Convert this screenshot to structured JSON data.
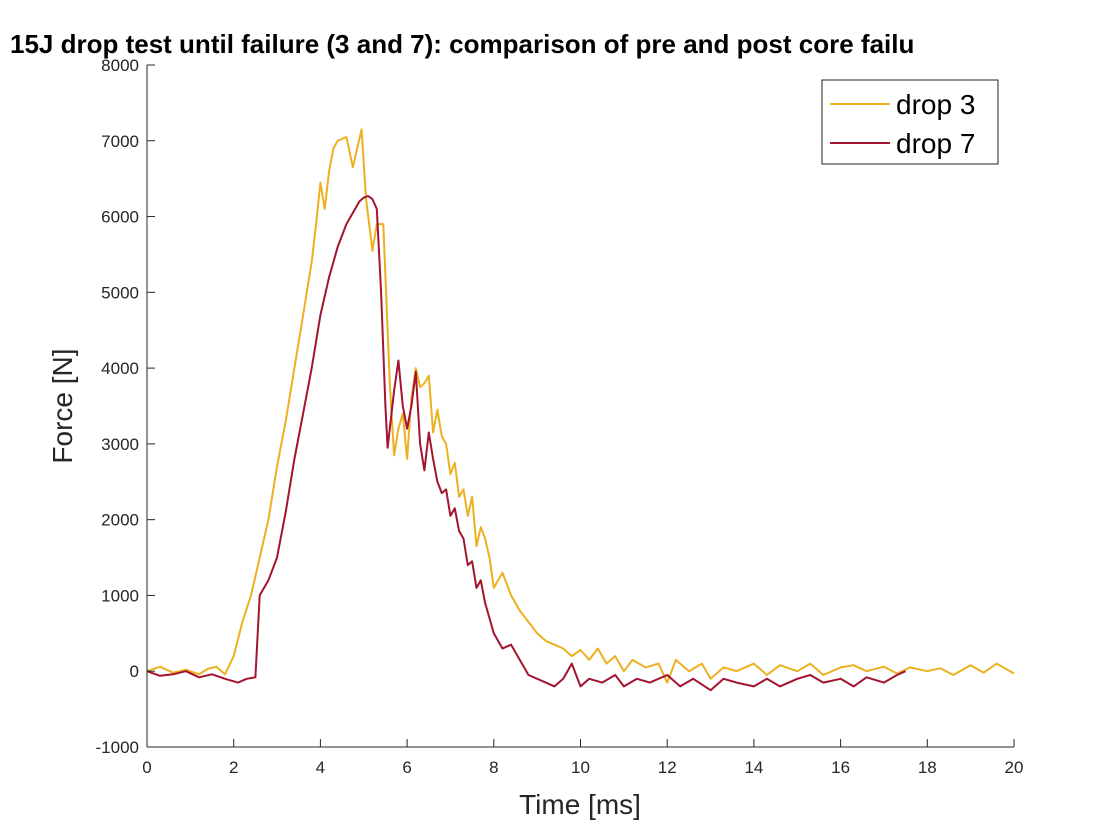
{
  "chart_data": {
    "type": "line",
    "title": "15J drop test until failure (3 and 7): comparison of pre and post core failu",
    "xlabel": "Time [ms]",
    "ylabel": "Force [N]",
    "xlim": [
      0,
      20
    ],
    "ylim": [
      -1000,
      8000
    ],
    "xticks": [
      0,
      2,
      4,
      6,
      8,
      10,
      12,
      14,
      16,
      18,
      20
    ],
    "yticks": [
      -1000,
      0,
      1000,
      2000,
      3000,
      4000,
      5000,
      6000,
      7000,
      8000
    ],
    "grid": false,
    "legend_position": "top-right",
    "series": [
      {
        "name": "drop 3",
        "color": "#EDB120",
        "points": [
          [
            0,
            0
          ],
          [
            0.3,
            60
          ],
          [
            0.6,
            -20
          ],
          [
            0.9,
            20
          ],
          [
            1.2,
            -40
          ],
          [
            1.4,
            30
          ],
          [
            1.6,
            60
          ],
          [
            1.8,
            -40
          ],
          [
            2.0,
            200
          ],
          [
            2.2,
            650
          ],
          [
            2.4,
            1000
          ],
          [
            2.6,
            1500
          ],
          [
            2.8,
            2000
          ],
          [
            3.0,
            2700
          ],
          [
            3.2,
            3300
          ],
          [
            3.4,
            4000
          ],
          [
            3.6,
            4700
          ],
          [
            3.8,
            5400
          ],
          [
            3.9,
            5900
          ],
          [
            4.0,
            6450
          ],
          [
            4.1,
            6100
          ],
          [
            4.2,
            6600
          ],
          [
            4.3,
            6900
          ],
          [
            4.4,
            7000
          ],
          [
            4.6,
            7050
          ],
          [
            4.75,
            6650
          ],
          [
            4.85,
            6900
          ],
          [
            4.95,
            7150
          ],
          [
            5.05,
            6250
          ],
          [
            5.2,
            5550
          ],
          [
            5.3,
            5900
          ],
          [
            5.45,
            5900
          ],
          [
            5.6,
            3800
          ],
          [
            5.7,
            2850
          ],
          [
            5.8,
            3200
          ],
          [
            5.9,
            3400
          ],
          [
            6.0,
            2800
          ],
          [
            6.1,
            3600
          ],
          [
            6.2,
            4000
          ],
          [
            6.3,
            3750
          ],
          [
            6.4,
            3800
          ],
          [
            6.5,
            3900
          ],
          [
            6.6,
            3150
          ],
          [
            6.7,
            3450
          ],
          [
            6.8,
            3100
          ],
          [
            6.9,
            3000
          ],
          [
            7.0,
            2600
          ],
          [
            7.1,
            2750
          ],
          [
            7.2,
            2300
          ],
          [
            7.3,
            2400
          ],
          [
            7.4,
            2050
          ],
          [
            7.5,
            2300
          ],
          [
            7.6,
            1650
          ],
          [
            7.7,
            1900
          ],
          [
            7.8,
            1750
          ],
          [
            7.9,
            1500
          ],
          [
            8.0,
            1100
          ],
          [
            8.2,
            1300
          ],
          [
            8.4,
            1000
          ],
          [
            8.6,
            800
          ],
          [
            8.8,
            650
          ],
          [
            9.0,
            500
          ],
          [
            9.2,
            400
          ],
          [
            9.4,
            350
          ],
          [
            9.6,
            300
          ],
          [
            9.8,
            200
          ],
          [
            10.0,
            280
          ],
          [
            10.2,
            150
          ],
          [
            10.4,
            300
          ],
          [
            10.6,
            100
          ],
          [
            10.8,
            200
          ],
          [
            11.0,
            0
          ],
          [
            11.2,
            150
          ],
          [
            11.5,
            50
          ],
          [
            11.8,
            100
          ],
          [
            12.0,
            -150
          ],
          [
            12.2,
            150
          ],
          [
            12.5,
            0
          ],
          [
            12.8,
            100
          ],
          [
            13.0,
            -100
          ],
          [
            13.3,
            50
          ],
          [
            13.6,
            0
          ],
          [
            14.0,
            100
          ],
          [
            14.3,
            -50
          ],
          [
            14.6,
            80
          ],
          [
            15.0,
            0
          ],
          [
            15.3,
            100
          ],
          [
            15.6,
            -50
          ],
          [
            16.0,
            50
          ],
          [
            16.3,
            80
          ],
          [
            16.6,
            0
          ],
          [
            17.0,
            60
          ],
          [
            17.3,
            -30
          ],
          [
            17.6,
            50
          ],
          [
            18.0,
            0
          ],
          [
            18.3,
            40
          ],
          [
            18.6,
            -50
          ],
          [
            19.0,
            80
          ],
          [
            19.3,
            -20
          ],
          [
            19.6,
            100
          ],
          [
            20.0,
            -30
          ]
        ]
      },
      {
        "name": "drop 7",
        "color": "#A2142F",
        "points": [
          [
            0,
            0
          ],
          [
            0.3,
            -60
          ],
          [
            0.6,
            -40
          ],
          [
            0.9,
            0
          ],
          [
            1.2,
            -80
          ],
          [
            1.5,
            -40
          ],
          [
            1.8,
            -100
          ],
          [
            2.1,
            -150
          ],
          [
            2.3,
            -100
          ],
          [
            2.5,
            -80
          ],
          [
            2.6,
            1000
          ],
          [
            2.8,
            1200
          ],
          [
            3.0,
            1500
          ],
          [
            3.2,
            2100
          ],
          [
            3.4,
            2800
          ],
          [
            3.6,
            3400
          ],
          [
            3.8,
            4000
          ],
          [
            4.0,
            4700
          ],
          [
            4.2,
            5200
          ],
          [
            4.4,
            5600
          ],
          [
            4.6,
            5900
          ],
          [
            4.8,
            6100
          ],
          [
            4.9,
            6200
          ],
          [
            5.0,
            6250
          ],
          [
            5.1,
            6270
          ],
          [
            5.2,
            6230
          ],
          [
            5.3,
            6100
          ],
          [
            5.4,
            5000
          ],
          [
            5.5,
            3500
          ],
          [
            5.55,
            2950
          ],
          [
            5.7,
            3700
          ],
          [
            5.8,
            4100
          ],
          [
            5.9,
            3500
          ],
          [
            6.0,
            3200
          ],
          [
            6.1,
            3500
          ],
          [
            6.2,
            3950
          ],
          [
            6.3,
            3000
          ],
          [
            6.4,
            2650
          ],
          [
            6.5,
            3150
          ],
          [
            6.6,
            2800
          ],
          [
            6.7,
            2500
          ],
          [
            6.8,
            2350
          ],
          [
            6.9,
            2400
          ],
          [
            7.0,
            2050
          ],
          [
            7.1,
            2150
          ],
          [
            7.2,
            1850
          ],
          [
            7.3,
            1750
          ],
          [
            7.4,
            1400
          ],
          [
            7.5,
            1450
          ],
          [
            7.6,
            1100
          ],
          [
            7.7,
            1200
          ],
          [
            7.8,
            900
          ],
          [
            7.9,
            700
          ],
          [
            8.0,
            500
          ],
          [
            8.1,
            400
          ],
          [
            8.2,
            300
          ],
          [
            8.4,
            350
          ],
          [
            8.6,
            150
          ],
          [
            8.8,
            -50
          ],
          [
            9.0,
            -100
          ],
          [
            9.2,
            -150
          ],
          [
            9.4,
            -200
          ],
          [
            9.6,
            -100
          ],
          [
            9.8,
            100
          ],
          [
            10.0,
            -200
          ],
          [
            10.2,
            -100
          ],
          [
            10.5,
            -150
          ],
          [
            10.8,
            -50
          ],
          [
            11.0,
            -200
          ],
          [
            11.3,
            -100
          ],
          [
            11.6,
            -150
          ],
          [
            12.0,
            -50
          ],
          [
            12.3,
            -200
          ],
          [
            12.6,
            -100
          ],
          [
            13.0,
            -250
          ],
          [
            13.3,
            -100
          ],
          [
            13.6,
            -150
          ],
          [
            14.0,
            -200
          ],
          [
            14.3,
            -100
          ],
          [
            14.6,
            -200
          ],
          [
            15.0,
            -100
          ],
          [
            15.3,
            -50
          ],
          [
            15.6,
            -150
          ],
          [
            16.0,
            -100
          ],
          [
            16.3,
            -200
          ],
          [
            16.6,
            -80
          ],
          [
            17.0,
            -150
          ],
          [
            17.3,
            -50
          ],
          [
            17.5,
            0
          ]
        ]
      }
    ]
  }
}
